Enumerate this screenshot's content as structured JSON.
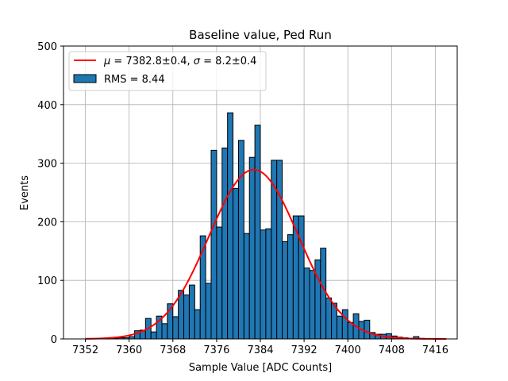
{
  "chart_data": {
    "type": "bar",
    "title": "Baseline value, Ped Run",
    "xlabel": "Sample Value [ADC Counts]",
    "ylabel": "Events",
    "xlim": [
      7348,
      7420
    ],
    "ylim": [
      0,
      500
    ],
    "x_ticks": [
      7352,
      7360,
      7368,
      7376,
      7384,
      7392,
      7400,
      7408,
      7416
    ],
    "y_ticks": [
      0,
      100,
      200,
      300,
      400,
      500
    ],
    "grid": true,
    "legend_position": "top-left",
    "series": [
      {
        "name": "RMS = 8.44",
        "kind": "histogram",
        "color": "#1f77b4",
        "edge_color": "#000000",
        "bin_edges": [
          7352,
          7353,
          7354,
          7355,
          7356,
          7357,
          7358,
          7359,
          7360,
          7361,
          7362,
          7363,
          7364,
          7365,
          7366,
          7367,
          7368,
          7369,
          7370,
          7371,
          7372,
          7373,
          7374,
          7375,
          7376,
          7377,
          7378,
          7379,
          7380,
          7381,
          7382,
          7383,
          7384,
          7385,
          7386,
          7387,
          7388,
          7389,
          7390,
          7391,
          7392,
          7393,
          7394,
          7395,
          7396,
          7397,
          7398,
          7399,
          7400,
          7401,
          7402,
          7403,
          7404,
          7405,
          7406,
          7407,
          7408,
          7409,
          7410,
          7411,
          7412,
          7413,
          7414,
          7415,
          7416,
          7417,
          7418,
          7419
        ],
        "counts": [
          0,
          0,
          0,
          0,
          0,
          1,
          2,
          2,
          4,
          14,
          15,
          35,
          12,
          39,
          26,
          60,
          38,
          83,
          75,
          92,
          50,
          176,
          95,
          322,
          191,
          326,
          386,
          257,
          339,
          180,
          310,
          365,
          186,
          188,
          305,
          305,
          166,
          178,
          210,
          210,
          121,
          117,
          135,
          155,
          70,
          61,
          39,
          50,
          28,
          43,
          30,
          32,
          11,
          8,
          8,
          9,
          5,
          3,
          2,
          1,
          4,
          1,
          0,
          0,
          0,
          0,
          0
        ]
      },
      {
        "name": "μ = 7382.8±0.4, σ = 8.2±0.4",
        "kind": "gaussian",
        "color": "#ff0000",
        "mu": 7382.8,
        "sigma": 8.2,
        "amplitude": 289,
        "x_range": [
          7352,
          7418
        ]
      }
    ],
    "legend": {
      "fit_label_html": "<tspan font-style='italic'>μ</tspan> = 7382.8±0.4, <tspan font-style='italic'>σ</tspan> = 8.2±0.4",
      "hist_label": "RMS = 8.44"
    }
  }
}
